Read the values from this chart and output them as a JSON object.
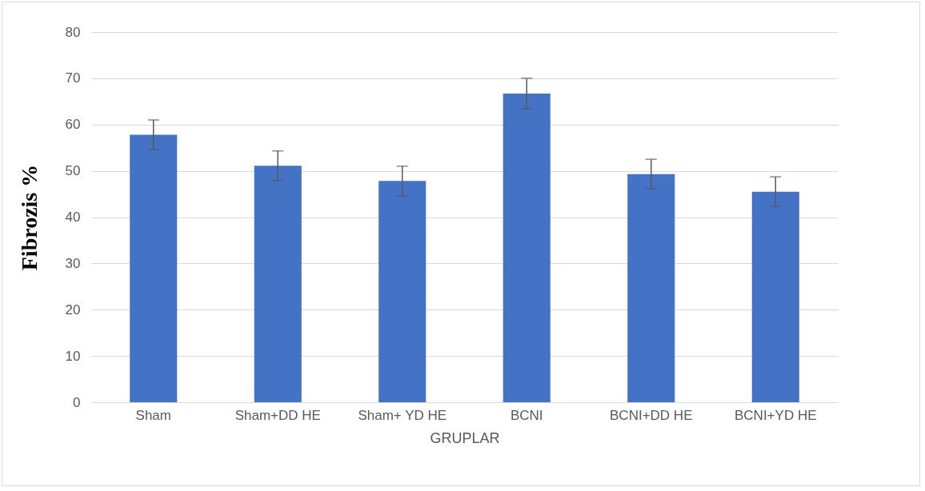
{
  "chart_data": {
    "type": "bar",
    "xlabel": "GRUPLAR",
    "ylabel": "Fibrozis  %",
    "categories": [
      "Sham",
      "Sham+DD HE",
      "Sham+ YD HE",
      "BCNI",
      "BCNI+DD HE",
      "BCNI+YD HE"
    ],
    "values": [
      57.8,
      51.1,
      47.8,
      66.7,
      49.3,
      45.5
    ],
    "errors": [
      3.2,
      3.2,
      3.2,
      3.3,
      3.2,
      3.2
    ],
    "color": "#4472c4",
    "ylim": [
      0,
      80
    ],
    "yticks": [
      0,
      10,
      20,
      30,
      40,
      50,
      60,
      70,
      80
    ],
    "grid": "y"
  }
}
